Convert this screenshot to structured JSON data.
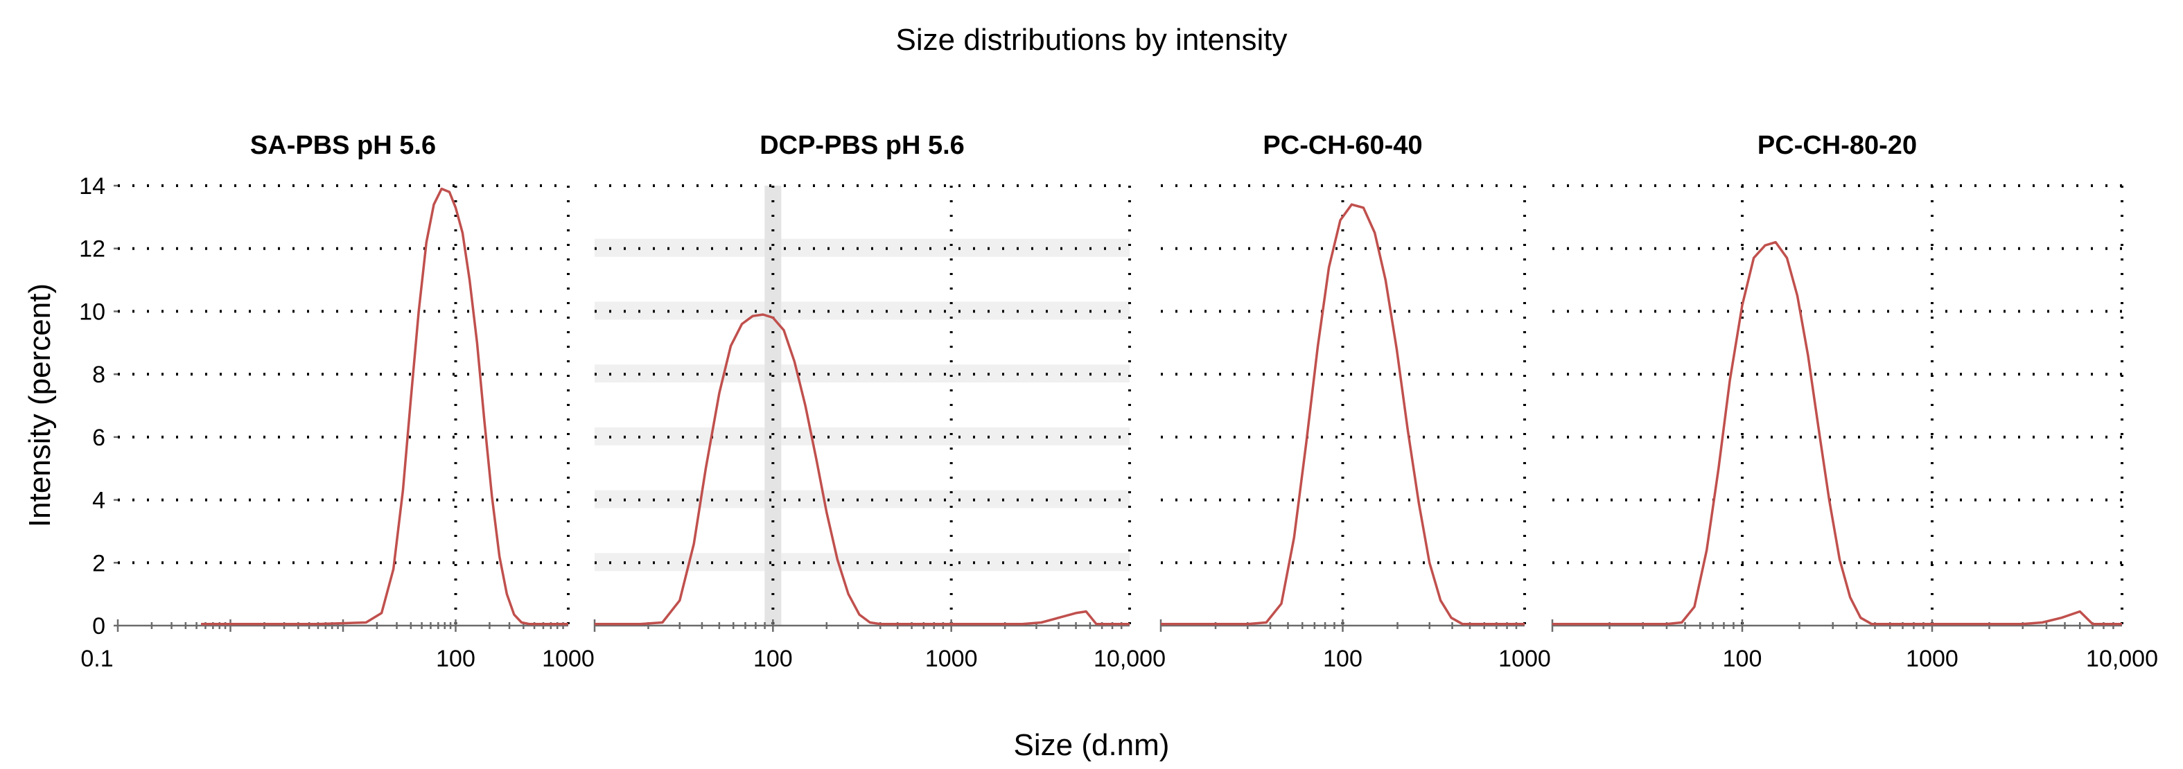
{
  "chart_data": {
    "title": "Size distributions by intensity",
    "ylabel": "Intensity (percent)",
    "xlabel": "Size (d.nm)",
    "series_color": "#c0504d",
    "y_ticks": [
      "0",
      "2",
      "4",
      "6",
      "8",
      "10",
      "12",
      "14"
    ],
    "ylim": [
      0,
      14
    ],
    "panels": [
      {
        "title": "SA-PBS pH 5.6",
        "type": "line",
        "x_scale": "log",
        "xlim": [
          0.1,
          1000
        ],
        "x_tick_labels": [
          {
            "value": 0.1,
            "label": "0.1"
          },
          {
            "value": 100,
            "label": "100"
          },
          {
            "value": 1000,
            "label": "1000"
          }
        ],
        "x_gridlines": [
          100
        ],
        "x": [
          0.4,
          6,
          16,
          22,
          28,
          34,
          40,
          47,
          55,
          64,
          75,
          88,
          100,
          115,
          133,
          155,
          180,
          210,
          245,
          285,
          330,
          385,
          450,
          520,
          600,
          700,
          800,
          1000
        ],
        "y": [
          0.05,
          0.05,
          0.1,
          0.4,
          1.8,
          4.3,
          7.2,
          10.0,
          12.2,
          13.4,
          13.9,
          13.8,
          13.3,
          12.5,
          11.0,
          9.0,
          6.5,
          4.1,
          2.2,
          1.0,
          0.35,
          0.1,
          0.05,
          0.05,
          0.05,
          0.05,
          0.05,
          0.05
        ]
      },
      {
        "title": "DCP-PBS pH 5.6",
        "type": "line",
        "x_scale": "log",
        "xlim": [
          10,
          10000
        ],
        "x_tick_labels": [
          {
            "value": 100,
            "label": "100"
          },
          {
            "value": 1000,
            "label": "1000"
          },
          {
            "value": 10000,
            "label": "10,000"
          }
        ],
        "x_gridlines": [
          100,
          1000
        ],
        "x": [
          10,
          18,
          24,
          30,
          36,
          42,
          50,
          58,
          67,
          77,
          88,
          100,
          115,
          132,
          152,
          175,
          200,
          230,
          265,
          305,
          350,
          400,
          460,
          530,
          620,
          1000,
          2500,
          3200,
          4000,
          5000,
          5700,
          6500,
          10000
        ],
        "y": [
          0.05,
          0.05,
          0.1,
          0.8,
          2.6,
          5.0,
          7.4,
          8.9,
          9.6,
          9.85,
          9.9,
          9.8,
          9.4,
          8.4,
          7.0,
          5.3,
          3.6,
          2.1,
          1.0,
          0.35,
          0.1,
          0.05,
          0.05,
          0.05,
          0.05,
          0.05,
          0.05,
          0.1,
          0.25,
          0.4,
          0.45,
          0.05,
          0.05
        ]
      },
      {
        "title": "PC-CH-60-40",
        "type": "line",
        "x_scale": "log",
        "xlim": [
          10,
          1000
        ],
        "x_tick_labels": [
          {
            "value": 100,
            "label": "100"
          },
          {
            "value": 1000,
            "label": "1000"
          }
        ],
        "x_gridlines": [
          100
        ],
        "x": [
          10,
          30,
          38,
          46,
          54,
          63,
          73,
          84,
          97,
          112,
          130,
          150,
          172,
          198,
          228,
          262,
          300,
          345,
          395,
          455,
          520,
          600,
          800,
          1000
        ],
        "y": [
          0.05,
          0.05,
          0.1,
          0.7,
          2.8,
          5.8,
          8.9,
          11.4,
          12.9,
          13.4,
          13.3,
          12.5,
          11.0,
          8.8,
          6.2,
          3.9,
          2.0,
          0.8,
          0.25,
          0.05,
          0.05,
          0.05,
          0.05,
          0.05
        ]
      },
      {
        "title": "PC-CH-80-20",
        "type": "line",
        "x_scale": "log",
        "xlim": [
          10,
          10000
        ],
        "x_tick_labels": [
          {
            "value": 100,
            "label": "100"
          },
          {
            "value": 1000,
            "label": "1000"
          },
          {
            "value": 10000,
            "label": "10,000"
          }
        ],
        "x_gridlines": [
          100,
          1000
        ],
        "x": [
          10,
          40,
          48,
          56,
          65,
          75,
          86,
          100,
          115,
          132,
          150,
          172,
          195,
          222,
          252,
          287,
          326,
          370,
          420,
          480,
          550,
          700,
          1500,
          3000,
          3800,
          4800,
          6000,
          7000,
          10000
        ],
        "y": [
          0.05,
          0.05,
          0.1,
          0.6,
          2.4,
          5.0,
          7.8,
          10.2,
          11.7,
          12.1,
          12.2,
          11.7,
          10.5,
          8.6,
          6.3,
          4.0,
          2.1,
          0.9,
          0.25,
          0.05,
          0.05,
          0.05,
          0.05,
          0.05,
          0.1,
          0.25,
          0.45,
          0.05,
          0.05
        ]
      }
    ]
  }
}
